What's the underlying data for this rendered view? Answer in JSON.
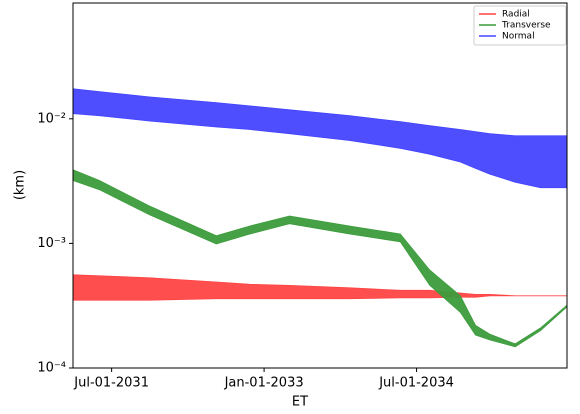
{
  "chart_data": {
    "type": "band",
    "x_label": "ET",
    "y_label": "(km)",
    "log_y": true,
    "legend": "upper right",
    "x": [
      2031.12,
      2031.38,
      2031.87,
      2032.53,
      2032.86,
      2033.25,
      2033.84,
      2034.34,
      2034.63,
      2034.93,
      2035.08,
      2035.22,
      2035.47,
      2035.72,
      2035.98
    ],
    "xlim": [
      2031.12,
      2035.98
    ],
    "xticks": [
      {
        "value": 2031.5,
        "label": "Jul-01-2031"
      },
      {
        "value": 2033.0,
        "label": "Jan-01-2033"
      },
      {
        "value": 2034.5,
        "label": "Jul-01-2034"
      }
    ],
    "ylim": [
      0.0001,
      0.085
    ],
    "yticks": [
      {
        "value": 0.0001,
        "label": "10⁻⁴"
      },
      {
        "value": 0.001,
        "label": "10⁻³"
      },
      {
        "value": 0.01,
        "label": "10⁻²"
      }
    ],
    "series": [
      {
        "name": "Radial",
        "color": "#ff4444",
        "upper": [
          0.00056,
          0.00055,
          0.00053,
          0.00049,
          0.00047,
          0.00046,
          0.00044,
          0.00042,
          0.00042,
          0.0004,
          0.00039,
          0.00039,
          0.00038,
          0.00038,
          0.00038
        ],
        "lower": [
          0.00035,
          0.00035,
          0.00035,
          0.00036,
          0.00036,
          0.00036,
          0.00036,
          0.000365,
          0.000365,
          0.00037,
          0.00037,
          0.00038,
          0.00038,
          0.00038,
          0.00038
        ]
      },
      {
        "name": "Transverse",
        "color": "#3c9c3c",
        "upper": [
          0.0039,
          0.0032,
          0.002,
          0.00115,
          0.00138,
          0.00166,
          0.00138,
          0.00119,
          0.00061,
          0.00038,
          0.00022,
          0.000187,
          0.000156,
          0.00021,
          0.00032
        ],
        "lower": [
          0.0032,
          0.0027,
          0.0017,
          0.00099,
          0.00119,
          0.00144,
          0.00119,
          0.00103,
          0.00046,
          0.00028,
          0.000184,
          0.000168,
          0.000148,
          0.0002,
          0.00031
        ]
      },
      {
        "name": "Normal",
        "color": "#4444ff",
        "upper": [
          0.0174,
          0.0165,
          0.015,
          0.0135,
          0.0127,
          0.0118,
          0.0106,
          0.0095,
          0.0088,
          0.0082,
          0.0079,
          0.0076,
          0.0073,
          0.0073,
          0.0073
        ],
        "lower": [
          0.011,
          0.0106,
          0.0096,
          0.0086,
          0.0082,
          0.0076,
          0.0067,
          0.0058,
          0.0052,
          0.0045,
          0.004,
          0.0036,
          0.0031,
          0.0028,
          0.0028
        ]
      }
    ]
  }
}
